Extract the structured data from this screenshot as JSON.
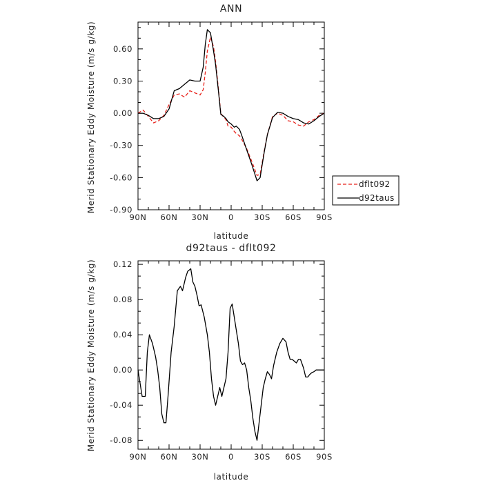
{
  "chart_data": [
    {
      "type": "line",
      "title": "ANN",
      "xlabel": "latitude",
      "ylabel": "Merid Stationary Eddy Moisture (m/s g/kg)",
      "xlim": [
        -90,
        90
      ],
      "ylim": [
        -0.9,
        0.85
      ],
      "x_ticks": [
        -90,
        -60,
        -30,
        0,
        30,
        60,
        90
      ],
      "x_tick_labels": [
        "90N",
        "60N",
        "30N",
        "0",
        "30S",
        "60S",
        "90S"
      ],
      "y_ticks": [
        0.6,
        0.3,
        0.0,
        -0.3,
        -0.6,
        -0.9
      ],
      "y_tick_labels": [
        "0.60",
        "0.30",
        "0.00",
        "-0.30",
        "-0.60",
        "-0.90"
      ],
      "legend": {
        "position": "right",
        "entries": [
          "dflt092",
          "d92taus"
        ]
      },
      "series": [
        {
          "name": "dflt092",
          "color": "#e8221b",
          "dash": "dashed",
          "x": [
            -90,
            -85,
            -80,
            -75,
            -70,
            -65,
            -60,
            -55,
            -50,
            -45,
            -40,
            -35,
            -30,
            -27,
            -25,
            -23,
            -20,
            -17,
            -15,
            -12,
            -10,
            -7,
            -5,
            -3,
            0,
            3,
            5,
            8,
            10,
            15,
            20,
            25,
            28,
            32,
            35,
            40,
            45,
            50,
            55,
            60,
            65,
            70,
            75,
            80,
            85,
            90
          ],
          "y": [
            0.0,
            0.03,
            -0.03,
            -0.09,
            -0.07,
            -0.02,
            0.08,
            0.17,
            0.18,
            0.15,
            0.21,
            0.19,
            0.17,
            0.22,
            0.38,
            0.58,
            0.71,
            0.62,
            0.48,
            0.2,
            0.0,
            -0.04,
            -0.06,
            -0.12,
            -0.13,
            -0.17,
            -0.19,
            -0.21,
            -0.24,
            -0.33,
            -0.45,
            -0.58,
            -0.57,
            -0.35,
            -0.2,
            -0.03,
            0.0,
            -0.02,
            -0.07,
            -0.08,
            -0.11,
            -0.12,
            -0.08,
            -0.06,
            -0.02,
            0.0
          ]
        },
        {
          "name": "d92taus",
          "color": "#000000",
          "dash": "solid",
          "x": [
            -90,
            -85,
            -80,
            -75,
            -70,
            -65,
            -60,
            -55,
            -50,
            -45,
            -40,
            -35,
            -30,
            -27,
            -25,
            -23,
            -20,
            -17,
            -15,
            -12,
            -10,
            -7,
            -5,
            -3,
            0,
            3,
            5,
            8,
            10,
            15,
            20,
            25,
            28,
            32,
            35,
            40,
            45,
            50,
            55,
            60,
            65,
            70,
            75,
            80,
            85,
            90
          ],
          "y": [
            0.0,
            0.0,
            -0.02,
            -0.05,
            -0.05,
            -0.03,
            0.04,
            0.21,
            0.23,
            0.27,
            0.31,
            0.3,
            0.3,
            0.43,
            0.64,
            0.78,
            0.75,
            0.58,
            0.45,
            0.18,
            -0.01,
            -0.03,
            -0.05,
            -0.08,
            -0.1,
            -0.13,
            -0.12,
            -0.15,
            -0.2,
            -0.34,
            -0.48,
            -0.63,
            -0.6,
            -0.36,
            -0.2,
            -0.04,
            0.01,
            0.0,
            -0.03,
            -0.05,
            -0.06,
            -0.09,
            -0.1,
            -0.07,
            -0.03,
            0.0
          ]
        }
      ]
    },
    {
      "type": "line",
      "title": "d92taus - dflt092",
      "xlabel": "latitude",
      "ylabel": "Merid Stationary Eddy Moisture (m/s g/kg)",
      "xlim": [
        -90,
        90
      ],
      "ylim": [
        -0.09,
        0.124
      ],
      "x_ticks": [
        -90,
        -60,
        -30,
        0,
        30,
        60,
        90
      ],
      "x_tick_labels": [
        "90N",
        "60N",
        "30N",
        "0",
        "30S",
        "60S",
        "90S"
      ],
      "y_ticks": [
        0.12,
        0.08,
        0.04,
        0.0,
        -0.04,
        -0.08
      ],
      "y_tick_labels": [
        "0.12",
        "0.08",
        "0.04",
        "0.00",
        "-0.04",
        "-0.08"
      ],
      "series": [
        {
          "color": "#000000",
          "dash": "solid",
          "x": [
            -90,
            -88,
            -86,
            -83,
            -81,
            -79,
            -76,
            -73,
            -71,
            -69,
            -67,
            -65,
            -63,
            -61,
            -58,
            -55,
            -52,
            -49,
            -47,
            -44,
            -42,
            -39,
            -37,
            -35,
            -33,
            -31,
            -29,
            -26,
            -23,
            -21,
            -19,
            -17,
            -15,
            -13,
            -11,
            -9,
            -7,
            -5,
            -3,
            -1,
            1,
            3,
            5,
            7,
            9,
            11,
            13,
            15,
            17,
            19,
            21,
            23,
            25,
            27,
            29,
            31,
            33,
            35,
            37,
            39,
            41,
            44,
            47,
            50,
            53,
            55,
            57,
            59,
            61,
            63,
            65,
            67,
            70,
            72,
            74,
            76,
            78,
            80,
            82,
            84,
            86,
            88,
            90
          ],
          "y": [
            0.0,
            -0.015,
            -0.03,
            -0.03,
            0.02,
            0.04,
            0.03,
            0.015,
            0.0,
            -0.02,
            -0.05,
            -0.06,
            -0.06,
            -0.03,
            0.02,
            0.05,
            0.09,
            0.095,
            0.09,
            0.105,
            0.112,
            0.115,
            0.1,
            0.095,
            0.085,
            0.073,
            0.074,
            0.06,
            0.04,
            0.02,
            -0.01,
            -0.03,
            -0.04,
            -0.03,
            -0.02,
            -0.03,
            -0.02,
            -0.01,
            0.02,
            0.07,
            0.075,
            0.06,
            0.045,
            0.03,
            0.01,
            0.006,
            0.008,
            0.0,
            -0.02,
            -0.035,
            -0.055,
            -0.07,
            -0.08,
            -0.06,
            -0.04,
            -0.02,
            -0.01,
            -0.002,
            -0.005,
            -0.01,
            0.005,
            0.02,
            0.03,
            0.036,
            0.032,
            0.02,
            0.012,
            0.012,
            0.01,
            0.008,
            0.012,
            0.012,
            0.002,
            -0.008,
            -0.008,
            -0.005,
            -0.003,
            -0.002,
            0.0,
            0.0,
            0.0,
            0.0,
            0.0
          ]
        }
      ]
    }
  ]
}
